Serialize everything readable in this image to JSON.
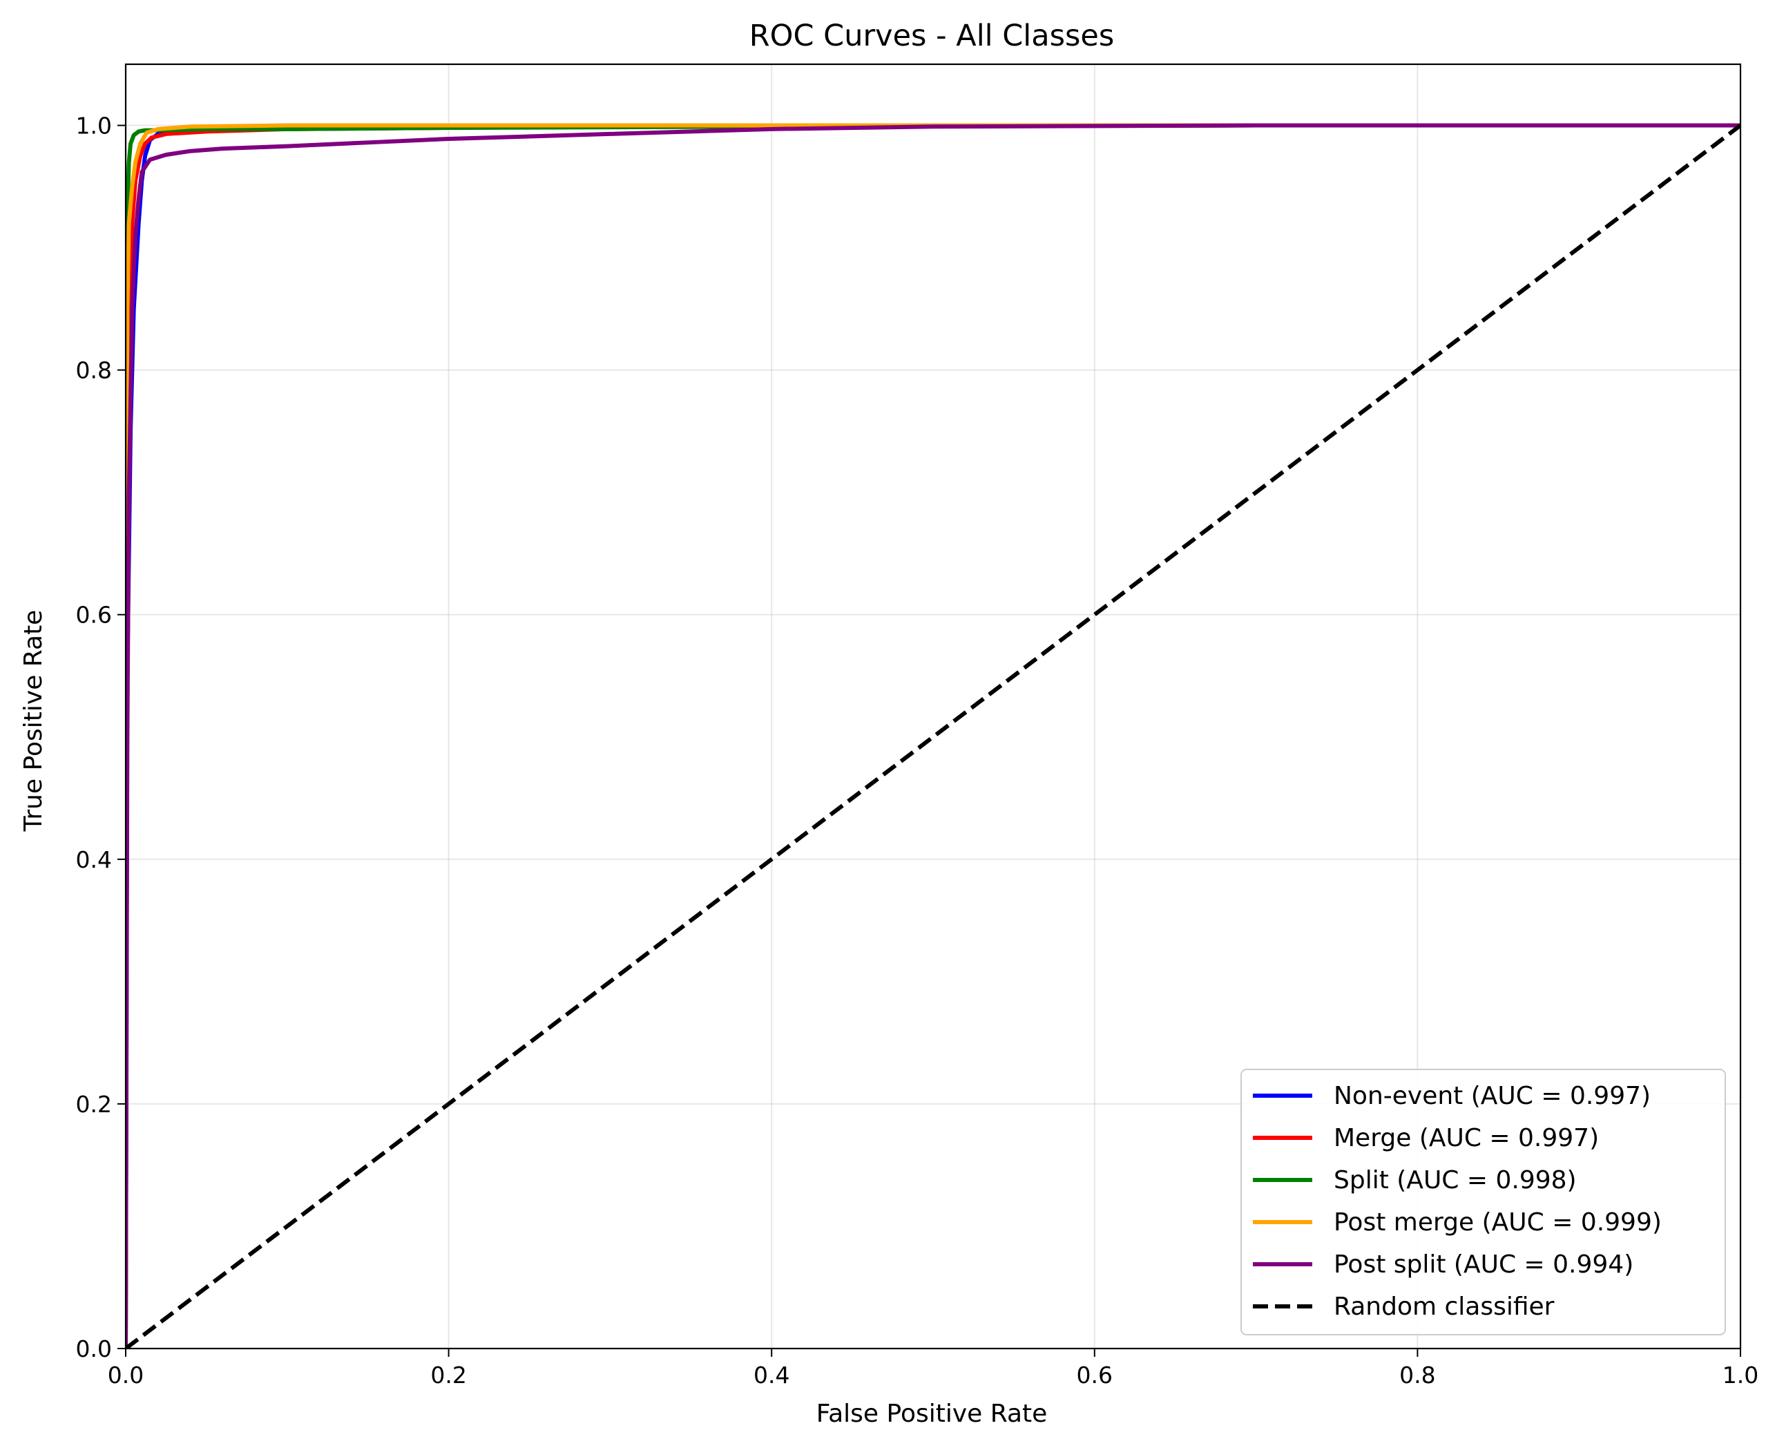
{
  "chart_data": {
    "type": "line",
    "title": "ROC Curves - All Classes",
    "xlabel": "False Positive Rate",
    "ylabel": "True Positive Rate",
    "xlim": [
      0.0,
      1.0
    ],
    "ylim": [
      0.0,
      1.05
    ],
    "xticks": [
      0.0,
      0.2,
      0.4,
      0.6,
      0.8,
      1.0
    ],
    "yticks": [
      0.0,
      0.2,
      0.4,
      0.6,
      0.8,
      1.0
    ],
    "xtick_labels": [
      "0.0",
      "0.2",
      "0.4",
      "0.6",
      "0.8",
      "1.0"
    ],
    "ytick_labels": [
      "0.0",
      "0.2",
      "0.4",
      "0.6",
      "0.8",
      "1.0"
    ],
    "grid": true,
    "legend_position": "bottom-right",
    "series": [
      {
        "name": "Non-event (AUC = 0.997)",
        "color": "#0000ff",
        "x": [
          0,
          0.001,
          0.003,
          0.005,
          0.008,
          0.01,
          0.012,
          0.015,
          0.02,
          0.04,
          0.1,
          0.3,
          0.6,
          1.0
        ],
        "y": [
          0,
          0.55,
          0.75,
          0.85,
          0.92,
          0.955,
          0.975,
          0.988,
          0.993,
          0.996,
          0.998,
          0.999,
          1.0,
          1.0
        ]
      },
      {
        "name": "Merge (AUC = 0.997)",
        "color": "#ff0000",
        "x": [
          0,
          0.001,
          0.002,
          0.004,
          0.006,
          0.009,
          0.012,
          0.016,
          0.025,
          0.05,
          0.1,
          0.3,
          0.7,
          1.0
        ],
        "y": [
          0,
          0.7,
          0.85,
          0.92,
          0.955,
          0.975,
          0.985,
          0.99,
          0.993,
          0.995,
          0.997,
          0.999,
          1.0,
          1.0
        ]
      },
      {
        "name": "Split (AUC = 0.998)",
        "color": "#008000",
        "x": [
          0,
          0.001,
          0.002,
          0.003,
          0.005,
          0.008,
          0.012,
          0.02,
          0.05,
          0.1,
          0.2,
          0.4,
          0.7,
          1.0
        ],
        "y": [
          0,
          0.93,
          0.97,
          0.985,
          0.992,
          0.995,
          0.996,
          0.996,
          0.997,
          0.997,
          0.998,
          0.999,
          1.0,
          1.0
        ]
      },
      {
        "name": "Post merge (AUC = 0.999)",
        "color": "#ffa500",
        "x": [
          0,
          0.001,
          0.002,
          0.004,
          0.006,
          0.009,
          0.013,
          0.02,
          0.04,
          0.1,
          0.3,
          0.7,
          1.0
        ],
        "y": [
          0,
          0.85,
          0.92,
          0.95,
          0.97,
          0.985,
          0.994,
          0.997,
          0.999,
          1.0,
          1.0,
          1.0,
          1.0
        ]
      },
      {
        "name": "Post split (AUC = 0.994)",
        "color": "#800080",
        "x": [
          0,
          0.001,
          0.002,
          0.004,
          0.006,
          0.008,
          0.01,
          0.015,
          0.025,
          0.04,
          0.06,
          0.1,
          0.15,
          0.2,
          0.3,
          0.4,
          0.5,
          0.7,
          1.0
        ],
        "y": [
          0,
          0.5,
          0.7,
          0.85,
          0.91,
          0.94,
          0.962,
          0.972,
          0.976,
          0.979,
          0.981,
          0.983,
          0.986,
          0.989,
          0.993,
          0.997,
          0.999,
          1.0,
          1.0
        ]
      },
      {
        "name": "Random classifier",
        "color": "#000000",
        "dashed": true,
        "x": [
          0,
          1
        ],
        "y": [
          0,
          1
        ]
      }
    ]
  }
}
